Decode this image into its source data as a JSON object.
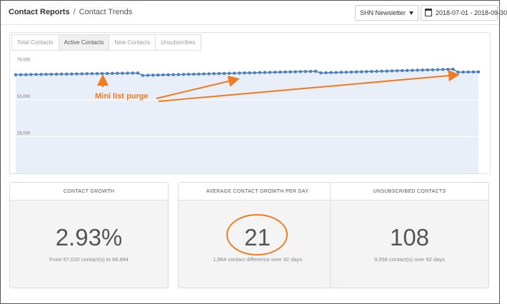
{
  "breadcrumb": {
    "section": "Contact Reports",
    "separator": "/",
    "page": "Contact Trends"
  },
  "newsletter_select": {
    "value": "SHN Newsletter"
  },
  "date_range": {
    "value": "2018-07-01 - 2018-09-30"
  },
  "tabs": [
    {
      "label": "Total Contacts",
      "active": false
    },
    {
      "label": "Active Contacts",
      "active": true
    },
    {
      "label": "New Contacts",
      "active": false
    },
    {
      "label": "Unsubscribes",
      "active": false
    }
  ],
  "annotation": {
    "label": "Mini list purge",
    "color": "#f07a1d"
  },
  "colors": {
    "series": "#4a7fc1",
    "area": "#e9eff9",
    "accent": "#f07a1d"
  },
  "chart_data": {
    "type": "area",
    "title": "",
    "xlabel": "",
    "ylabel": "",
    "ylim": [
      0,
      80000
    ],
    "yticks": [
      {
        "value": 75000,
        "label": "75,000"
      },
      {
        "value": 50000,
        "label": "50,000"
      },
      {
        "value": 25000,
        "label": "25,000"
      }
    ],
    "grid": true,
    "series": [
      {
        "points_count": 92,
        "segments": [
          {
            "from_day": 0,
            "to_day": 24,
            "start": 67020,
            "end": 68200
          },
          {
            "from_day": 25,
            "to_day": 59,
            "start": 66600,
            "end": 69400
          },
          {
            "from_day": 60,
            "to_day": 86,
            "start": 68300,
            "end": 70800
          },
          {
            "from_day": 87,
            "to_day": 91,
            "start": 68800,
            "end": 68984
          }
        ]
      }
    ]
  },
  "cards": [
    {
      "title": "CONTACT GROWTH",
      "value": "2.93%",
      "subtitle": "From 67,020 contact(s) to 68,984"
    },
    {
      "title": "AVERAGE CONTACT GROWTH PER DAY",
      "value": "21",
      "subtitle": "1,964 contact difference over 92 days"
    },
    {
      "title": "UNSUBSCRIBED CONTACTS",
      "value": "108",
      "subtitle": "9,958 contact(s) over 92 days"
    }
  ]
}
